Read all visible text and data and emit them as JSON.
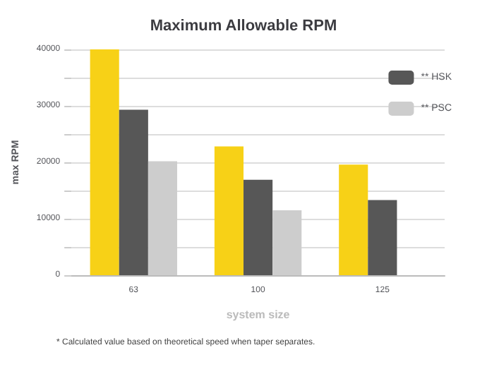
{
  "chart_data": {
    "type": "bar",
    "title": "Maximum Allowable RPM",
    "xlabel": "system size",
    "ylabel": "max RPM",
    "categories": [
      "63",
      "100",
      "125"
    ],
    "series": [
      {
        "color": "#f7d117",
        "values": [
          40000,
          22800,
          19600
        ]
      },
      {
        "name": "** HSK",
        "color": "#575757",
        "values": [
          29300,
          16900,
          13300
        ]
      },
      {
        "name": "** PSC",
        "color": "#cdcdcd",
        "values": [
          20200,
          11500,
          null
        ]
      }
    ],
    "ylim": [
      0,
      40000
    ],
    "yticks": [
      0,
      {
        "value": 5000,
        "label": null
      },
      10000,
      {
        "value": 15000,
        "label": null
      },
      20000,
      {
        "value": 25000,
        "label": null
      },
      30000,
      {
        "value": 35000,
        "label": null
      },
      40000
    ],
    "grid": "y",
    "legend": "top right",
    "annotations": [
      "* Calculated value based on theoretical speed when taper separates."
    ]
  }
}
